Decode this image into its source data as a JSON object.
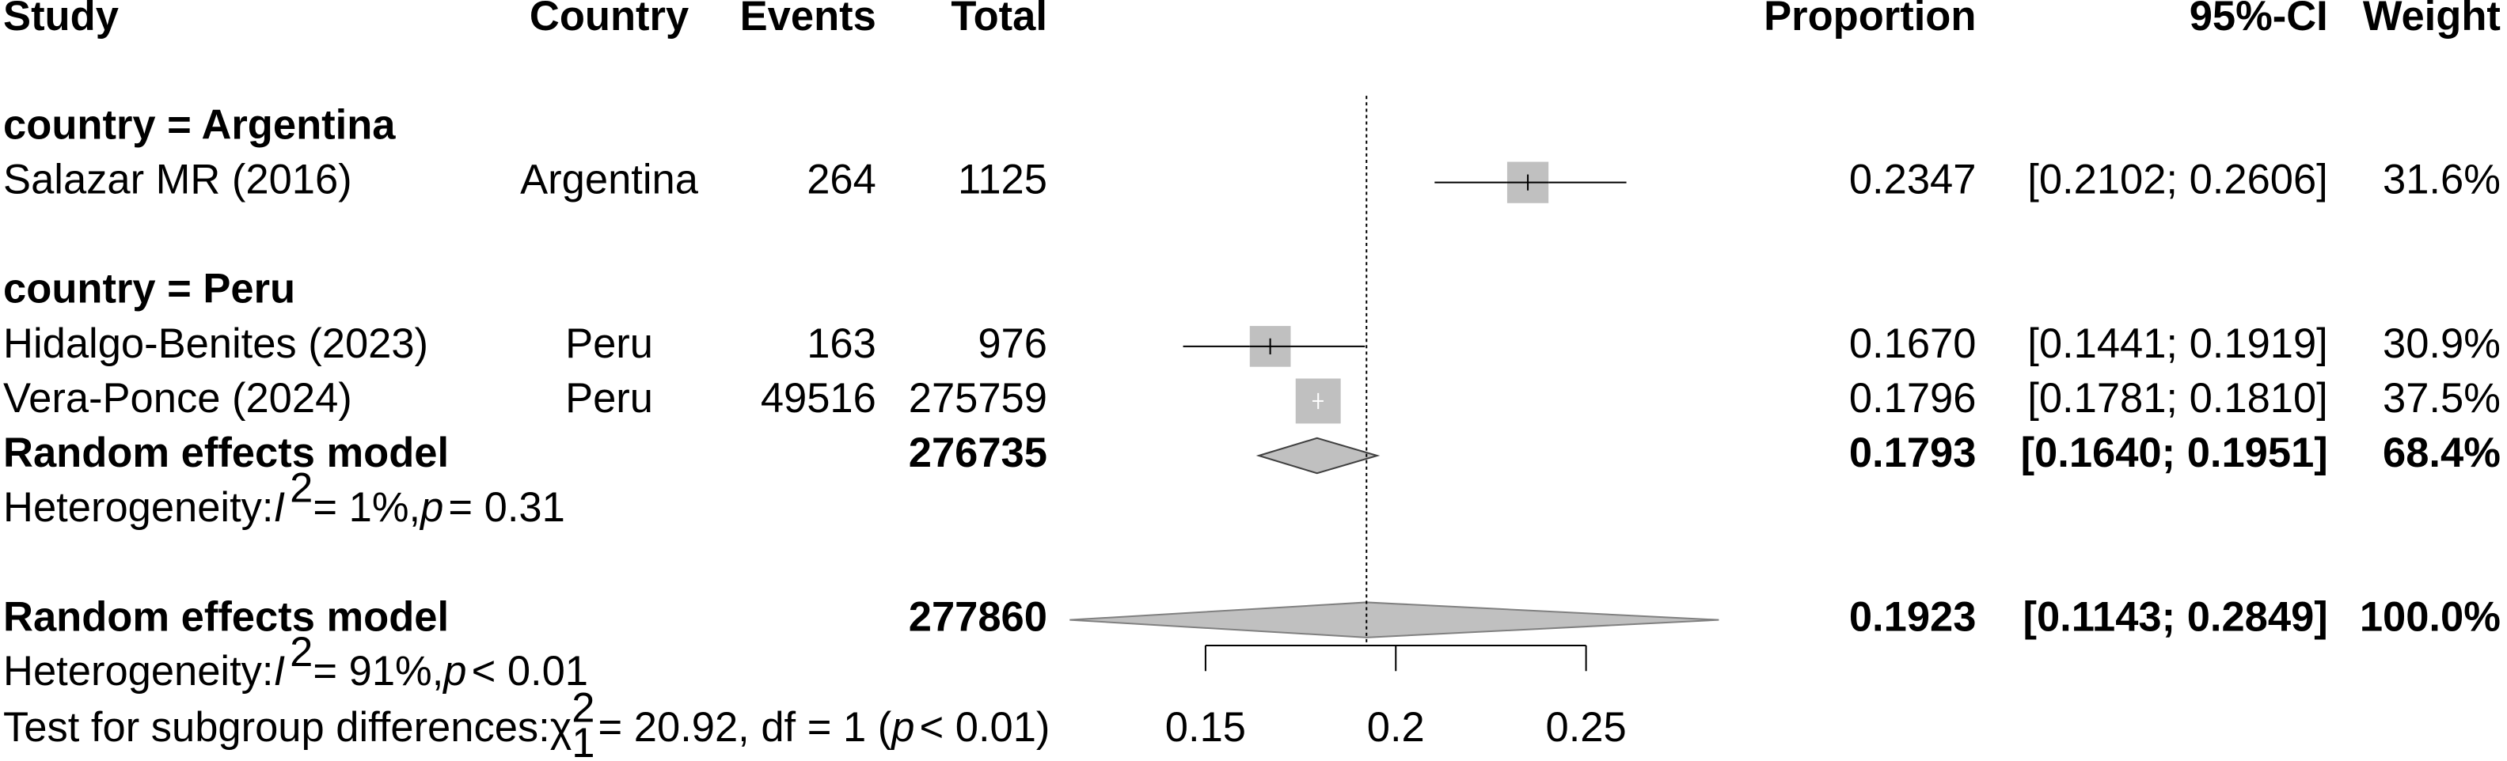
{
  "chart_data": {
    "type": "forest",
    "headers": {
      "study": "Study",
      "country": "Country",
      "events": "Events",
      "total": "Total",
      "proportion": "Proportion",
      "ci": "95%-CI",
      "weight": "Weight"
    },
    "groups": [
      {
        "label": "country = Argentina",
        "studies": [
          {
            "name": "Salazar MR (2016)",
            "country": "Argentina",
            "events": 264,
            "total": 1125,
            "proportion": 0.2347,
            "lower": 0.2102,
            "upper": 0.2606,
            "ci_label": "[0.2102; 0.2606]",
            "weight": 31.6,
            "weight_label": "31.6%"
          }
        ]
      },
      {
        "label": "country = Peru",
        "studies": [
          {
            "name": "Hidalgo-Benites (2023)",
            "country": "Peru",
            "events": 163,
            "total": 976,
            "proportion": 0.167,
            "proportion_label": "0.1670",
            "lower": 0.1441,
            "upper": 0.1919,
            "ci_label": "[0.1441; 0.1919]",
            "weight": 30.9,
            "weight_label": "30.9%"
          },
          {
            "name": "Vera-Ponce (2024)",
            "country": "Peru",
            "events": 49516,
            "total": 275759,
            "proportion": 0.1796,
            "lower": 0.1781,
            "upper": 0.181,
            "ci_label": "[0.1781; 0.1810]",
            "weight": 37.5,
            "weight_label": "37.5%"
          }
        ],
        "model": {
          "name": "Random effects model",
          "total": 276735,
          "proportion": 0.1793,
          "lower": 0.164,
          "upper": 0.1951,
          "ci_label": "[0.1640; 0.1951]",
          "weight": 68.4,
          "weight_label": "68.4%"
        },
        "heterogeneity": [
          "Heterogeneity: ",
          "I",
          "2",
          " = 1%, ",
          "p",
          " = 0.31"
        ]
      }
    ],
    "overall": {
      "name": "Random effects model",
      "total": 277860,
      "proportion": 0.1923,
      "lower": 0.1143,
      "upper": 0.2849,
      "ci_label": "[0.1143; 0.2849]",
      "weight": 100,
      "weight_label": "100.0%"
    },
    "heterogeneity": [
      "Heterogeneity: ",
      "I",
      "2",
      " = 91%, ",
      "p",
      " < 0.01"
    ],
    "subgroup_test": [
      "Test for subgroup differences: ",
      "χ",
      "2",
      "1",
      " = 20.92, df = 1 (",
      "p",
      " < 0.01)"
    ],
    "xlim": [
      0.15,
      0.25
    ],
    "xticks": [
      0.15,
      0.2,
      0.25
    ],
    "colors": {
      "square": "#c0c0c0",
      "diamond": "#c0c0c0",
      "subgroup_text": "#a6a6a6",
      "line": "#000000"
    }
  }
}
